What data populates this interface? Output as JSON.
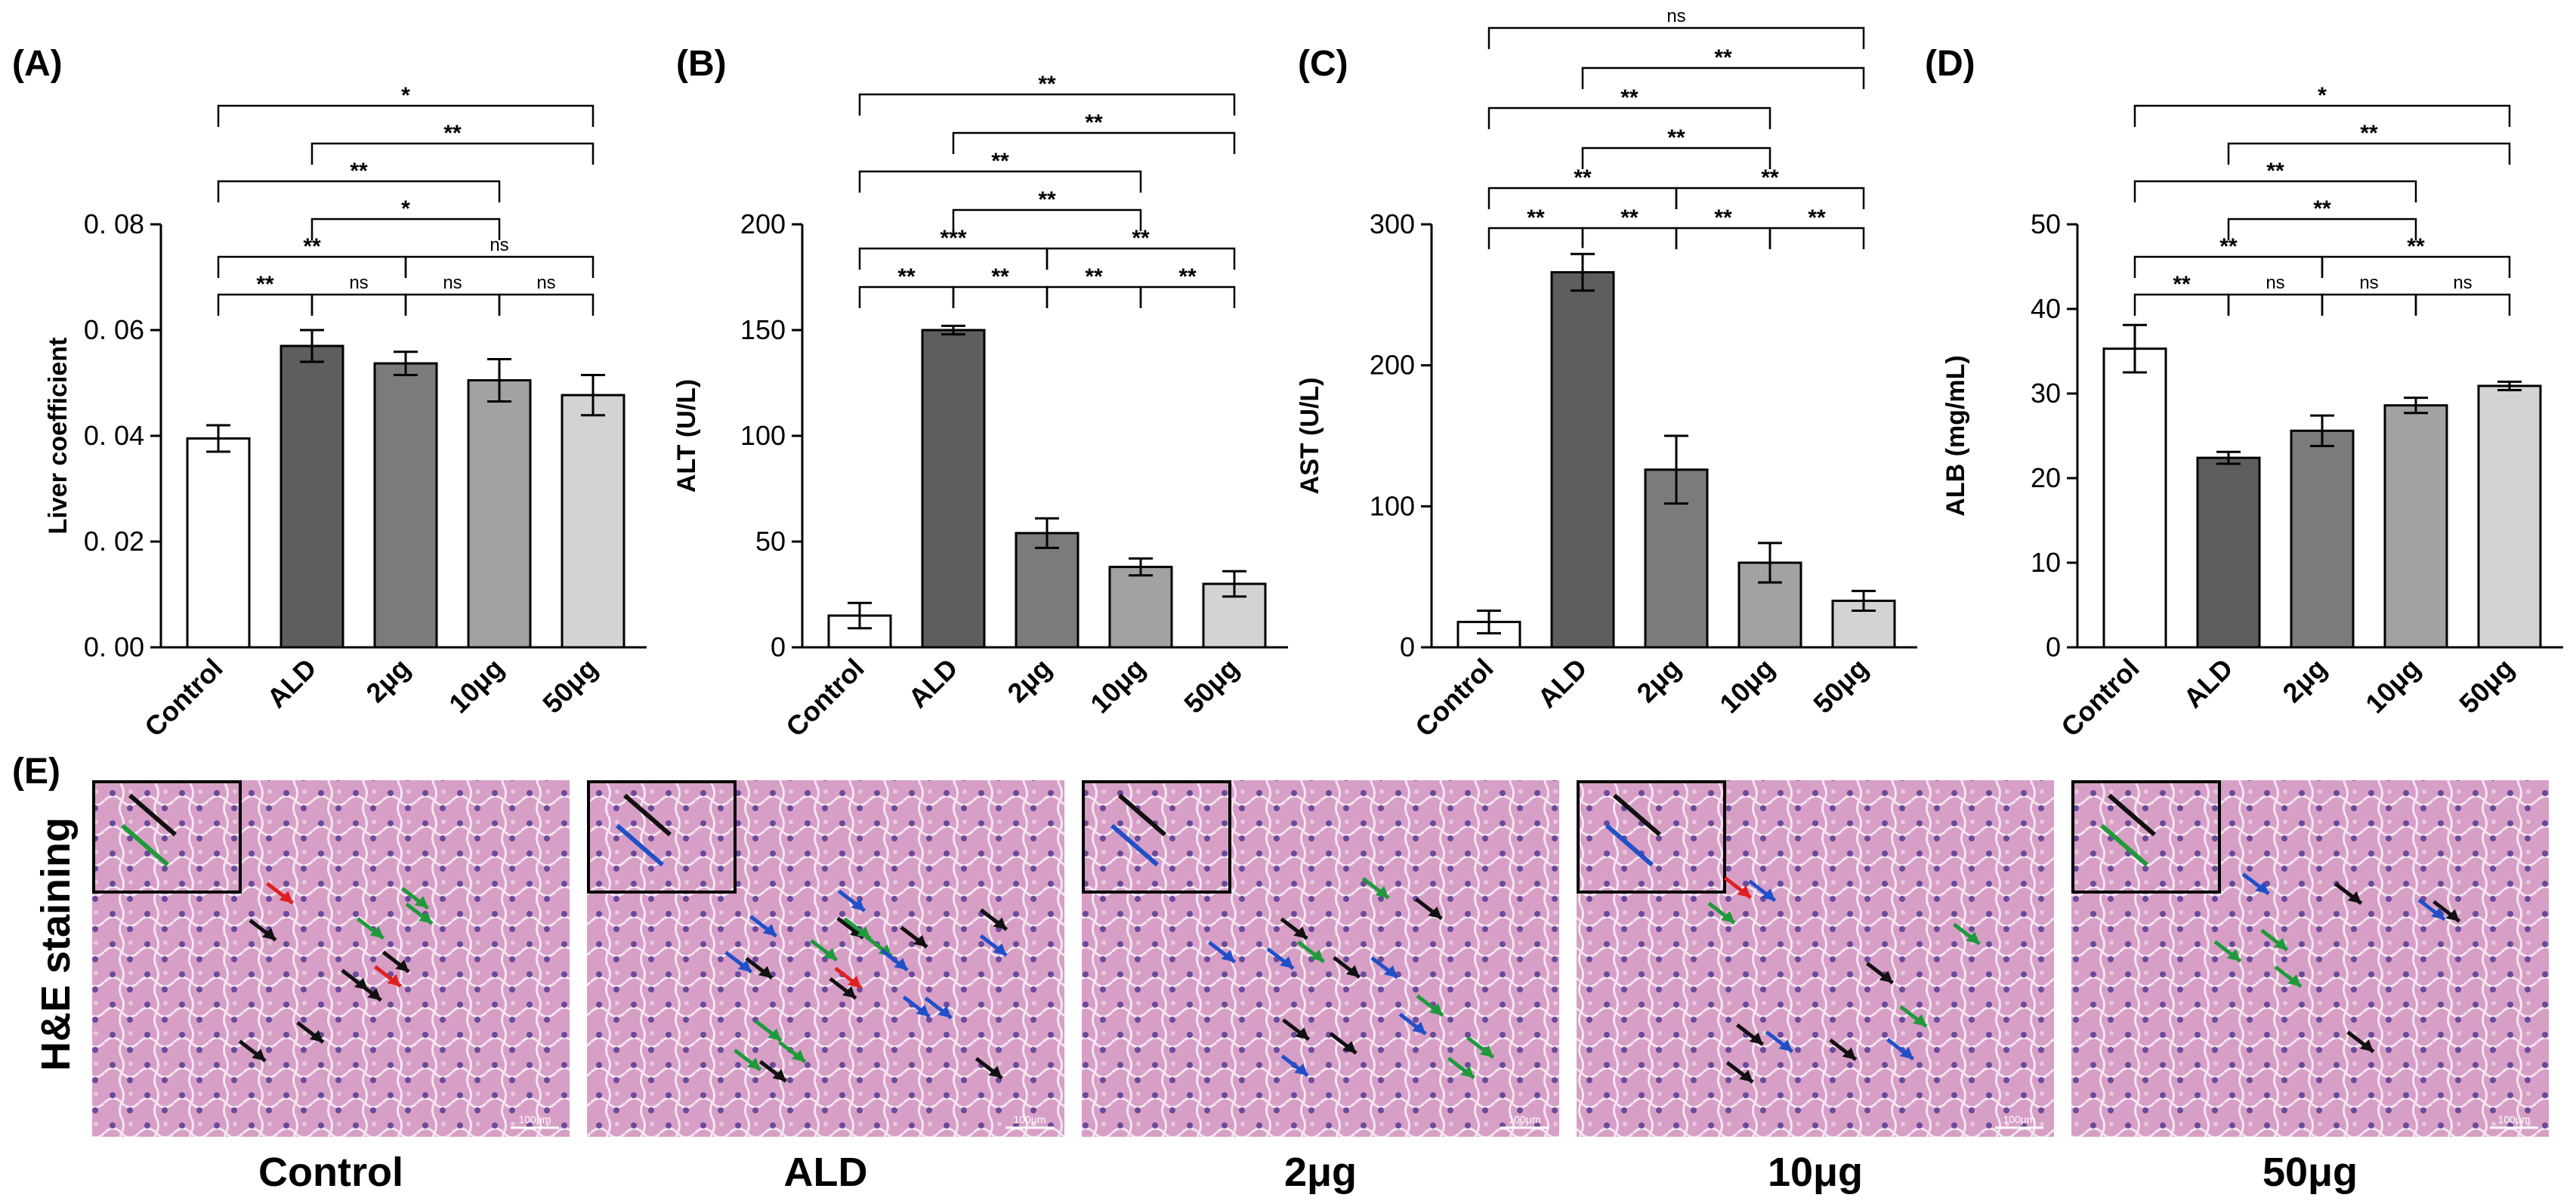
{
  "chart_data": [
    {
      "type": "bar",
      "panel_label": "(A)",
      "ylabel": "Liver coefficient",
      "categories": [
        "Control",
        "ALD",
        "2μg",
        "10μg",
        "50μg"
      ],
      "values": [
        0.0395,
        0.057,
        0.0537,
        0.0505,
        0.0477
      ],
      "errors": [
        0.0025,
        0.003,
        0.0022,
        0.004,
        0.0038
      ],
      "ylim": [
        0,
        0.08
      ],
      "yticks": [
        0.0,
        0.02,
        0.04,
        0.06,
        0.08
      ],
      "ytick_labels": [
        "0. 00",
        "0. 02",
        "0. 04",
        "0. 06",
        "0. 08"
      ],
      "comparisons": [
        {
          "a": 0,
          "b": 1,
          "label": "**"
        },
        {
          "a": 1,
          "b": 2,
          "label": "ns"
        },
        {
          "a": 2,
          "b": 3,
          "label": "ns"
        },
        {
          "a": 3,
          "b": 4,
          "label": "ns"
        },
        {
          "a": 0,
          "b": 2,
          "label": "**"
        },
        {
          "a": 2,
          "b": 4,
          "label": "ns"
        },
        {
          "a": 1,
          "b": 3,
          "label": "*"
        },
        {
          "a": 0,
          "b": 3,
          "label": "**"
        },
        {
          "a": 1,
          "b": 4,
          "label": "**"
        },
        {
          "a": 0,
          "b": 4,
          "label": "*"
        }
      ]
    },
    {
      "type": "bar",
      "panel_label": "(B)",
      "ylabel": "ALT (U/L)",
      "categories": [
        "Control",
        "ALD",
        "2μg",
        "10μg",
        "50μg"
      ],
      "values": [
        15,
        150,
        54,
        38,
        30
      ],
      "errors": [
        6,
        2,
        7,
        4,
        6
      ],
      "ylim": [
        0,
        200
      ],
      "yticks": [
        0,
        50,
        100,
        150,
        200
      ],
      "ytick_labels": [
        "0",
        "50",
        "100",
        "150",
        "200"
      ],
      "comparisons": [
        {
          "a": 0,
          "b": 1,
          "label": "**"
        },
        {
          "a": 1,
          "b": 2,
          "label": "**"
        },
        {
          "a": 2,
          "b": 3,
          "label": "**"
        },
        {
          "a": 3,
          "b": 4,
          "label": "**"
        },
        {
          "a": 0,
          "b": 2,
          "label": "***"
        },
        {
          "a": 2,
          "b": 4,
          "label": "**"
        },
        {
          "a": 1,
          "b": 3,
          "label": "**"
        },
        {
          "a": 0,
          "b": 3,
          "label": "**"
        },
        {
          "a": 1,
          "b": 4,
          "label": "**"
        },
        {
          "a": 0,
          "b": 4,
          "label": "**"
        }
      ]
    },
    {
      "type": "bar",
      "panel_label": "(C)",
      "ylabel": "AST (U/L)",
      "categories": [
        "Control",
        "ALD",
        "2μg",
        "10μg",
        "50μg"
      ],
      "values": [
        18,
        266,
        126,
        60,
        33
      ],
      "errors": [
        8,
        13,
        24,
        14,
        7
      ],
      "ylim": [
        0,
        300
      ],
      "yticks": [
        0,
        100,
        200,
        300
      ],
      "ytick_labels": [
        "0",
        "100",
        "200",
        "300"
      ],
      "comparisons": [
        {
          "a": 0,
          "b": 1,
          "label": "**"
        },
        {
          "a": 1,
          "b": 2,
          "label": "**"
        },
        {
          "a": 2,
          "b": 3,
          "label": "**"
        },
        {
          "a": 3,
          "b": 4,
          "label": "**"
        },
        {
          "a": 0,
          "b": 2,
          "label": "**"
        },
        {
          "a": 2,
          "b": 4,
          "label": "**"
        },
        {
          "a": 1,
          "b": 3,
          "label": "**"
        },
        {
          "a": 0,
          "b": 3,
          "label": "**"
        },
        {
          "a": 1,
          "b": 4,
          "label": "**"
        },
        {
          "a": 0,
          "b": 4,
          "label": "ns"
        }
      ]
    },
    {
      "type": "bar",
      "panel_label": "(D)",
      "ylabel": "ALB (mg/mL)",
      "categories": [
        "Control",
        "ALD",
        "2μg",
        "10μg",
        "50μg"
      ],
      "values": [
        35.3,
        22.4,
        25.6,
        28.6,
        30.9
      ],
      "errors": [
        2.8,
        0.7,
        1.8,
        0.9,
        0.5
      ],
      "ylim": [
        0,
        50
      ],
      "yticks": [
        0,
        10,
        20,
        30,
        40,
        50
      ],
      "ytick_labels": [
        "0",
        "10",
        "20",
        "30",
        "40",
        "50"
      ],
      "comparisons": [
        {
          "a": 0,
          "b": 1,
          "label": "**"
        },
        {
          "a": 1,
          "b": 2,
          "label": "ns"
        },
        {
          "a": 2,
          "b": 3,
          "label": "ns"
        },
        {
          "a": 3,
          "b": 4,
          "label": "ns"
        },
        {
          "a": 0,
          "b": 2,
          "label": "**"
        },
        {
          "a": 2,
          "b": 4,
          "label": "**"
        },
        {
          "a": 1,
          "b": 3,
          "label": "**"
        },
        {
          "a": 0,
          "b": 3,
          "label": "**"
        },
        {
          "a": 1,
          "b": 4,
          "label": "**"
        },
        {
          "a": 0,
          "b": 4,
          "label": "*"
        }
      ]
    }
  ],
  "bar_colors": [
    "#ffffff",
    "#5e5e5e",
    "#7b7b7b",
    "#a2a2a2",
    "#d3d3d3"
  ],
  "staining": {
    "panel_label": "(E)",
    "row_label": "H&E staining",
    "scale_label": "100μm",
    "panels": [
      {
        "label": "Control",
        "arrows": {
          "black": 6,
          "green": 3,
          "red": 2,
          "blue": 0
        }
      },
      {
        "label": "ALD",
        "arrows": {
          "black": 7,
          "green": 6,
          "red": 1,
          "blue": 7
        }
      },
      {
        "label": "2μg",
        "arrows": {
          "black": 5,
          "green": 5,
          "red": 0,
          "blue": 5
        }
      },
      {
        "label": "10μg",
        "arrows": {
          "black": 4,
          "green": 3,
          "red": 1,
          "blue": 3
        }
      },
      {
        "label": "50μg",
        "arrows": {
          "black": 3,
          "green": 3,
          "red": 0,
          "blue": 2
        }
      }
    ],
    "arrow_colors": {
      "black": "#111111",
      "green": "#1f9a3a",
      "red": "#e02020",
      "blue": "#2050c8"
    }
  }
}
